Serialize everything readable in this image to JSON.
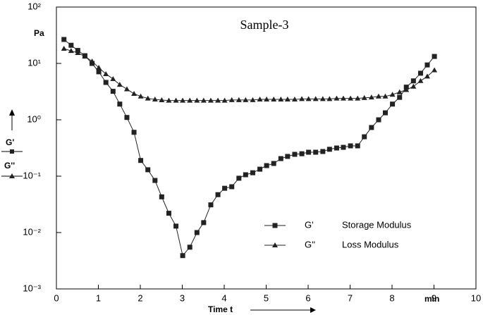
{
  "chart_data": {
    "type": "line",
    "title": "Sample-3",
    "y_unit": "Pa",
    "x_label": "Time t",
    "x_unit": "min",
    "log_y": true,
    "xlim": [
      0,
      10
    ],
    "xticks": [
      0,
      1,
      2,
      3,
      4,
      5,
      6,
      7,
      8,
      9,
      10
    ],
    "ylim": [
      0.001,
      100
    ],
    "yticks": [
      {
        "value": 0.001,
        "label": "10⁻³"
      },
      {
        "value": 0.01,
        "label": "10⁻²"
      },
      {
        "value": 0.1,
        "label": "10⁻¹"
      },
      {
        "value": 1,
        "label": "10⁰"
      },
      {
        "value": 10,
        "label": "10¹"
      },
      {
        "value": 100,
        "label": "10²"
      }
    ],
    "x": [
      0.18,
      0.35,
      0.51,
      0.68,
      0.85,
      1.01,
      1.18,
      1.35,
      1.51,
      1.68,
      1.85,
      2.01,
      2.18,
      2.35,
      2.51,
      2.68,
      2.85,
      3.01,
      3.18,
      3.35,
      3.51,
      3.68,
      3.85,
      4.01,
      4.18,
      4.35,
      4.51,
      4.68,
      4.85,
      5.01,
      5.18,
      5.35,
      5.51,
      5.68,
      5.85,
      6.01,
      6.18,
      6.35,
      6.51,
      6.68,
      6.84,
      7.01,
      7.18,
      7.34,
      7.51,
      7.68,
      7.84,
      8.01,
      8.18,
      8.34,
      8.51,
      8.68,
      8.84,
      9.01
    ],
    "series": [
      {
        "name": "G'",
        "label": "Storage Modulus",
        "marker": "square",
        "color": "#222",
        "values": [
          26.6,
          21,
          17,
          13.7,
          10,
          7.1,
          4.6,
          3.2,
          1.9,
          1.1,
          0.6,
          0.19,
          0.13,
          0.084,
          0.043,
          0.022,
          0.013,
          0.0039,
          0.0055,
          0.01,
          0.015,
          0.031,
          0.047,
          0.061,
          0.065,
          0.092,
          0.106,
          0.115,
          0.133,
          0.154,
          0.168,
          0.205,
          0.224,
          0.244,
          0.25,
          0.266,
          0.266,
          0.274,
          0.3,
          0.316,
          0.325,
          0.345,
          0.345,
          0.5,
          0.73,
          1.0,
          1.33,
          1.9,
          2.5,
          3.8,
          4.9,
          6.7,
          9.4,
          13.3
        ]
      },
      {
        "name": "G''",
        "label": "Loss Modulus",
        "marker": "triangle",
        "color": "#222",
        "values": [
          18.3,
          16.7,
          15.4,
          13.3,
          10.9,
          8.4,
          6.5,
          5.3,
          4.2,
          3.5,
          2.9,
          2.6,
          2.4,
          2.3,
          2.24,
          2.2,
          2.2,
          2.2,
          2.2,
          2.2,
          2.2,
          2.2,
          2.2,
          2.2,
          2.25,
          2.25,
          2.25,
          2.25,
          2.3,
          2.3,
          2.3,
          2.3,
          2.3,
          2.3,
          2.35,
          2.35,
          2.35,
          2.35,
          2.35,
          2.4,
          2.4,
          2.4,
          2.4,
          2.45,
          2.5,
          2.6,
          2.6,
          2.8,
          3.1,
          3.4,
          3.9,
          4.9,
          5.9,
          7.6
        ]
      }
    ]
  }
}
